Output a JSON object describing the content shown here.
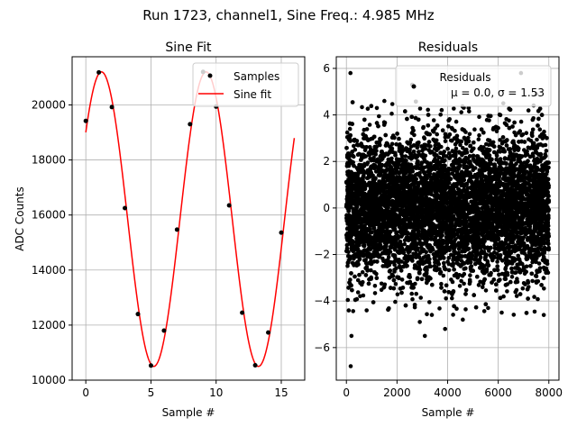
{
  "suptitle": "Run 1723, channel1, Sine Freq.: 4.985 MHz",
  "chart_data": [
    {
      "type": "scatter+line",
      "title": "Sine Fit",
      "xlabel": "Sample #",
      "ylabel": "ADC Counts",
      "xlim": [
        -1.05,
        16.8
      ],
      "ylim": [
        10000,
        21750
      ],
      "xticks": [
        0,
        5,
        10,
        15
      ],
      "xtick_labels": [
        "0",
        "5",
        "10",
        "15"
      ],
      "yticks": [
        10000,
        12000,
        14000,
        16000,
        18000,
        20000
      ],
      "ytick_labels": [
        "10000",
        "12000",
        "14000",
        "16000",
        "18000",
        "20000"
      ],
      "grid": true,
      "legend_position": "top-right",
      "legend": [
        "Samples",
        "Sine fit"
      ],
      "samples": {
        "name": "Samples",
        "x": [
          0,
          1,
          2,
          3,
          4,
          5,
          6,
          7,
          8,
          9,
          10,
          11,
          12,
          13,
          14,
          15
        ],
        "y": [
          19420,
          21180,
          19920,
          16250,
          12400,
          10530,
          11800,
          15470,
          19300,
          21200,
          19940,
          16350,
          12450,
          10540,
          11730,
          15360
        ]
      },
      "fit": {
        "name": "Sine fit",
        "x_range": [
          0,
          16
        ],
        "offset": 15850,
        "amplitude": 5350,
        "period": 8.03,
        "phase_deg": 36.1
      },
      "colors": {
        "samples": "#000000",
        "fit": "#ff0000"
      }
    },
    {
      "type": "scatter",
      "title": "Residuals",
      "xlabel": "Sample #",
      "ylabel": "",
      "xlim": [
        -400,
        8400
      ],
      "ylim": [
        -7.4,
        6.5
      ],
      "xticks": [
        0,
        2000,
        4000,
        6000,
        8000
      ],
      "xtick_labels": [
        "0",
        "2000",
        "4000",
        "6000",
        "8000"
      ],
      "yticks": [
        -6,
        -4,
        -2,
        0,
        2,
        4,
        6
      ],
      "ytick_labels": [
        "−6",
        "−4",
        "−2",
        "0",
        "2",
        "4",
        "6"
      ],
      "grid": true,
      "legend_position": "top-right",
      "legend_title": "Residuals",
      "legend_text": "μ = 0.0, σ = 1.53",
      "n_points": 8000,
      "mean": 0.0,
      "std": 1.53,
      "x_range": [
        0,
        8000
      ],
      "outliers": [
        {
          "x": 170,
          "y": -6.8
        },
        {
          "x": 200,
          "y": -5.5
        },
        {
          "x": 160,
          "y": 5.8
        },
        {
          "x": 2600,
          "y": 5.3
        },
        {
          "x": 6900,
          "y": 5.8
        },
        {
          "x": 6200,
          "y": 4.5
        },
        {
          "x": 3100,
          "y": -5.5
        },
        {
          "x": 3900,
          "y": -5.2
        },
        {
          "x": 4600,
          "y": -4.8
        },
        {
          "x": 800,
          "y": -4.4
        },
        {
          "x": 7500,
          "y": 4.9
        },
        {
          "x": 5600,
          "y": -4.3
        },
        {
          "x": 1500,
          "y": 4.6
        },
        {
          "x": 2900,
          "y": -4.9
        },
        {
          "x": 7800,
          "y": -4.6
        }
      ],
      "colors": {
        "points": "#000000"
      }
    }
  ]
}
